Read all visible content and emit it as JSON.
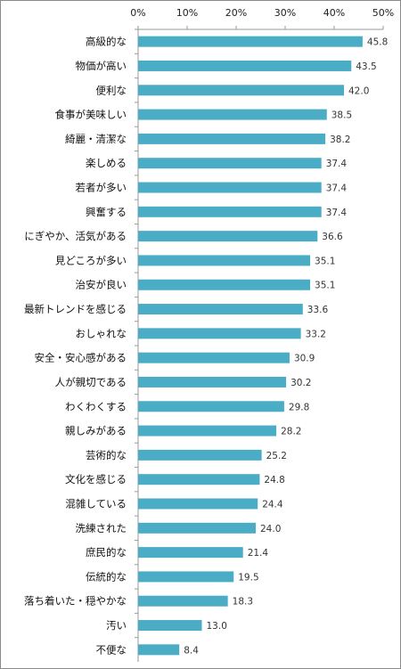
{
  "chart_data": {
    "type": "bar",
    "orientation": "horizontal",
    "title": "",
    "xlabel": "",
    "ylabel": "",
    "xlim": [
      0,
      50
    ],
    "x_ticks": [
      "0%",
      "10%",
      "20%",
      "30%",
      "40%",
      "50%"
    ],
    "grid": false,
    "bar_color": "#4BACC6",
    "categories": [
      "高級的な",
      "物価が高い",
      "便利な",
      "食事が美味しい",
      "綺麗・清潔な",
      "楽しめる",
      "若者が多い",
      "興奮する",
      "にぎやか、活気がある",
      "見どころが多い",
      "治安が良い",
      "最新トレンドを感じる",
      "おしゃれな",
      "安全・安心感がある",
      "人が親切である",
      "わくわくする",
      "親しみがある",
      "芸術的な",
      "文化を感じる",
      "混雑している",
      "洗練された",
      "庶民的な",
      "伝統的な",
      "落ち着いた・穏やかな",
      "汚い",
      "不便な"
    ],
    "values": [
      45.8,
      43.5,
      42.0,
      38.5,
      38.2,
      37.4,
      37.4,
      37.4,
      36.6,
      35.1,
      35.1,
      33.6,
      33.2,
      30.9,
      30.2,
      29.8,
      28.2,
      25.2,
      24.8,
      24.4,
      24.0,
      21.4,
      19.5,
      18.3,
      13.0,
      8.4
    ],
    "value_labels": [
      "45.8",
      "43.5",
      "42.0",
      "38.5",
      "38.2",
      "37.4",
      "37.4",
      "37.4",
      "36.6",
      "35.1",
      "35.1",
      "33.6",
      "33.2",
      "30.9",
      "30.2",
      "29.8",
      "28.2",
      "25.2",
      "24.8",
      "24.4",
      "24.0",
      "21.4",
      "19.5",
      "18.3",
      "13.0",
      "8.4"
    ]
  }
}
